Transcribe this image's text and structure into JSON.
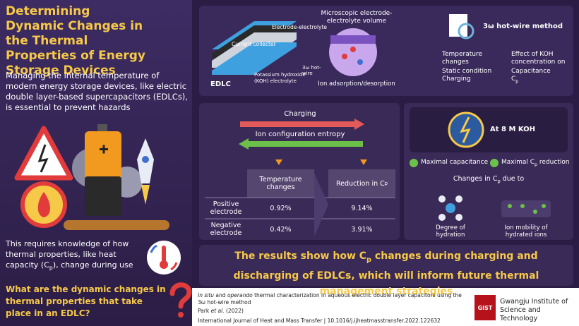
{
  "left": {
    "title": "Determining Dynamic Changes in the Thermal Properties of Energy Storage Devices",
    "intro": "Managing the internal temperature of modern energy storage devices, like electric double layer-based supercapacitors (EDLCs), is essential to prevent hazards",
    "requirement": {
      "before": "This requires knowledge of how thermal properties, like heat capacity (C",
      "sub": "p",
      "after": "), change during use"
    },
    "question": "What are the dynamic changes in thermal properties that take place in an EDLC?"
  },
  "setup": {
    "current_collector": "Current collector",
    "electrode_electrolyte": "Electrode-electrolyte",
    "hot_wire": "3ω hot-wire",
    "koh": "Potassium hydroxide (KOH) electrolyte",
    "edlc": "EDLC",
    "micro_title": "Microscopic electrode-electrolyte volume",
    "micro_caption": "Ion adsorption/desorption",
    "method_title": "3ω hot-wire method",
    "columns": [
      {
        "heading": "Temperature changes",
        "items": [
          "Static condition",
          "Charging"
        ]
      },
      {
        "heading": "Effect of KOH concentration on",
        "items": [
          "Capacitance",
          {
            "text": "C",
            "sub": "p"
          }
        ]
      }
    ]
  },
  "process": {
    "charging": "Charging",
    "entropy": "Ion configuration entropy",
    "table": {
      "header": [
        "Temperature changes",
        {
          "text": "Reduction in C",
          "sub": "p"
        }
      ],
      "rows": [
        [
          "Positive electrode",
          "0.92%",
          "9.14%"
        ],
        [
          "Negative electrode",
          "0.42%",
          "3.91%"
        ]
      ]
    }
  },
  "koh": {
    "label": "At 8 M KOH",
    "checks": [
      "Maximal capacitance",
      {
        "text": "Maximal C",
        "sub": "p",
        "after": " reduction"
      }
    ],
    "changes_title": {
      "text": "Changes in C",
      "sub": "p",
      "after": " due to"
    },
    "causes": [
      "Degree of hydration",
      "Ion mobility of hydrated ions"
    ]
  },
  "result": {
    "before": "The results show how C",
    "sub": "p",
    "after": " changes during charging and discharging of EDLCs, which will inform future thermal management strategies"
  },
  "citation": {
    "italic1": "In situ",
    "and": " and ",
    "italic2": "operando",
    "rest": " thermal characterization in aqueous electric double layer capacitors using the 3ω hot-wire method",
    "authors": "Park ",
    "etal": "et al.",
    "year": " (2022)",
    "journal": "International Journal of Heat and Mass Transfer",
    "doi": "10.1016/j.ijheatmasstransfer.2022.122632"
  },
  "logo": {
    "mark": "GIST",
    "name": "Gwangju Institute of Science and Technology"
  }
}
